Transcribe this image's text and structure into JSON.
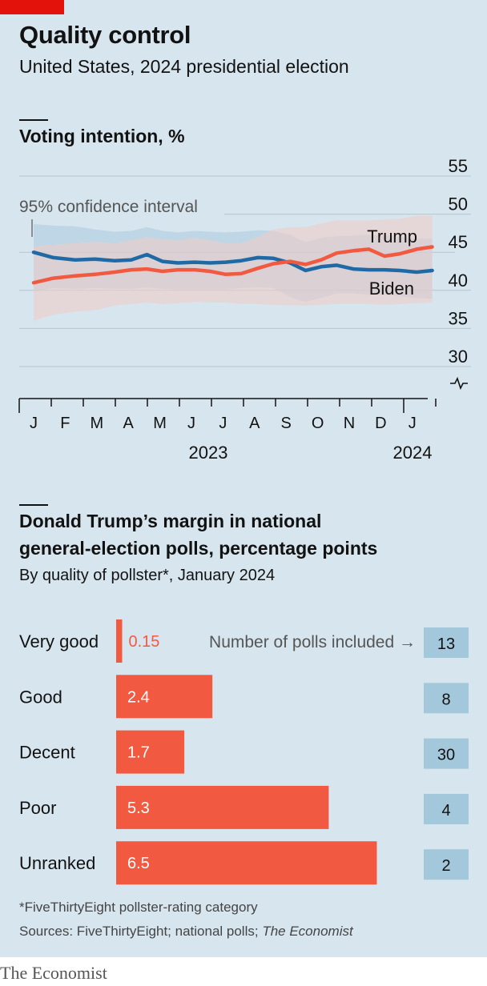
{
  "header": {
    "title": "Quality control",
    "subtitle": "United States, 2024 presidential election"
  },
  "colors": {
    "background": "#d7e6ee",
    "brand_red": "#e3120b",
    "trump": "#f15a40",
    "biden": "#1f6aa5",
    "trump_band": "#eecdc8",
    "biden_band": "#a9c8df",
    "polls_box": "#a3c8db"
  },
  "chart_data": [
    {
      "type": "line",
      "title": "Voting intention, %",
      "annotation": "95% confidence interval",
      "y_ticks": [
        "55",
        "50",
        "45",
        "40",
        "35",
        "30"
      ],
      "ylim": [
        30,
        55
      ],
      "y_axis_break": true,
      "x_ticks": [
        "J",
        "F",
        "M",
        "A",
        "M",
        "J",
        "J",
        "A",
        "S",
        "O",
        "N",
        "D",
        "J"
      ],
      "year_labels": [
        "2023",
        "2024"
      ],
      "grid": true,
      "x": [
        "2023-01-01",
        "2023-01-20",
        "2023-02-10",
        "2023-03-01",
        "2023-03-20",
        "2023-04-05",
        "2023-04-20",
        "2023-05-05",
        "2023-05-20",
        "2023-06-05",
        "2023-06-20",
        "2023-07-05",
        "2023-07-20",
        "2023-08-05",
        "2023-08-20",
        "2023-09-05",
        "2023-09-20",
        "2023-10-05",
        "2023-10-20",
        "2023-11-05",
        "2023-11-20",
        "2023-12-05",
        "2023-12-20",
        "2024-01-05",
        "2024-01-20"
      ],
      "series": [
        {
          "name": "Trump",
          "values": [
            41.0,
            41.6,
            41.9,
            42.1,
            42.4,
            42.7,
            42.8,
            42.5,
            42.7,
            42.7,
            42.5,
            42.1,
            42.2,
            42.9,
            43.5,
            43.8,
            43.4,
            44.0,
            44.9,
            45.2,
            45.4,
            44.5,
            44.8,
            45.4,
            45.7
          ],
          "ci_low": [
            36.0,
            36.8,
            37.2,
            37.4,
            38.0,
            38.2,
            38.4,
            38.2,
            38.3,
            38.5,
            38.4,
            38.4,
            38.2,
            38.2,
            38.1,
            38.0,
            38.0,
            38.1,
            38.2,
            38.2,
            38.2,
            38.1,
            38.2,
            38.3,
            38.4
          ],
          "ci_high": [
            45.8,
            46.0,
            46.2,
            46.4,
            46.2,
            46.6,
            47.0,
            46.7,
            46.6,
            46.9,
            46.6,
            46.2,
            46.2,
            47.0,
            48.0,
            48.3,
            48.3,
            48.8,
            49.2,
            49.2,
            49.2,
            49.3,
            49.4,
            49.8,
            49.8
          ]
        },
        {
          "name": "Biden",
          "values": [
            45.0,
            44.3,
            44.0,
            44.1,
            43.9,
            44.0,
            44.7,
            43.8,
            43.6,
            43.7,
            43.6,
            43.7,
            43.9,
            44.3,
            44.2,
            43.6,
            42.6,
            43.1,
            43.3,
            42.8,
            42.7,
            42.7,
            42.6,
            42.4,
            42.6
          ],
          "ci_low": [
            39.8,
            40.3,
            40.2,
            40.3,
            40.2,
            40.2,
            40.4,
            40.2,
            40.1,
            40.1,
            40.1,
            40.1,
            40.3,
            40.4,
            40.3,
            39.1,
            38.5,
            39.0,
            39.6,
            39.6,
            39.4,
            39.4,
            39.2,
            39.0,
            38.9
          ],
          "ci_high": [
            48.7,
            48.5,
            48.4,
            48.0,
            47.7,
            47.8,
            48.3,
            47.8,
            47.6,
            47.8,
            47.7,
            47.6,
            47.7,
            47.9,
            47.8,
            47.3,
            46.3,
            46.9,
            47.1,
            47.2,
            47.3,
            47.2,
            47.0,
            46.8,
            46.8
          ]
        }
      ]
    },
    {
      "type": "bar",
      "title_lines": [
        "Donald Trump’s margin in national",
        "general-election polls, percentage points"
      ],
      "subtitle": "By quality of pollster*, January 2024",
      "categories": [
        "Very good",
        "Good",
        "Decent",
        "Poor",
        "Unranked"
      ],
      "values": [
        0.15,
        2.4,
        1.7,
        5.3,
        6.5
      ],
      "value_labels": [
        "0.15",
        "2.4",
        "1.7",
        "5.3",
        "6.5"
      ],
      "polls_header": "Number of polls included →",
      "polls_included": [
        "13",
        "8",
        "30",
        "4",
        "2"
      ],
      "xlim": [
        0,
        7
      ]
    }
  ],
  "footer": {
    "note": "*FiveThirtyEight pollster-rating category",
    "sources_prefix": "Sources: FiveThirtyEight; national polls; ",
    "sources_italic": "The Economist",
    "publisher": "The Economist"
  }
}
